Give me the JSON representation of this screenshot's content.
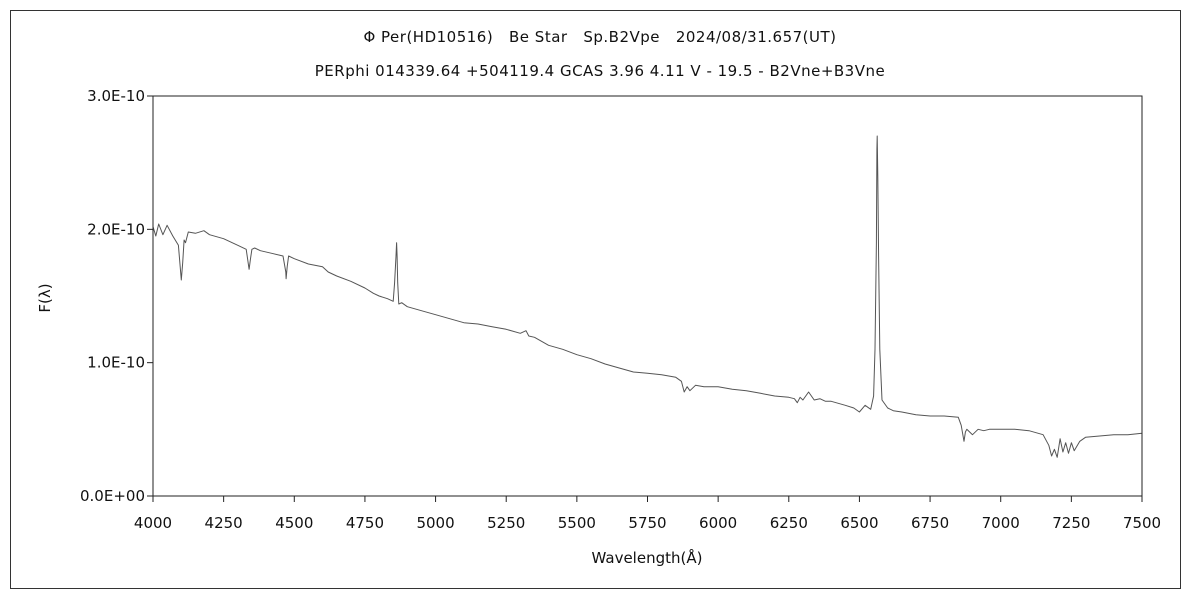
{
  "chart_data": {
    "type": "line",
    "title": "Φ Per(HD10516)   Be Star   Sp.B2Vpe   2024/08/31.657(UT)",
    "subtitle": "PERphi 014339.64 +504119.4 GCAS 3.96 4.11 V - 19.5 - B2Vne+B3Vne",
    "xlabel": "Wavelength(Å)",
    "ylabel": "F(λ)",
    "xlim": [
      4000,
      7500
    ],
    "ylim": [
      0,
      3e-10
    ],
    "x_ticks": [
      4000,
      4250,
      4500,
      4750,
      5000,
      5250,
      5500,
      5750,
      6000,
      6250,
      6500,
      6750,
      7000,
      7250,
      7500
    ],
    "x_tick_labels": [
      "4000",
      "4250",
      "4500",
      "4750",
      "5000",
      "5250",
      "5500",
      "5750",
      "6000",
      "6250",
      "6500",
      "6750",
      "7000",
      "7250",
      "7500"
    ],
    "y_ticks": [
      0,
      1e-10,
      2e-10,
      3e-10
    ],
    "y_tick_labels": [
      "0.0E+00",
      "1.0E-10",
      "2.0E-10",
      "3.0E-10"
    ],
    "grid": false,
    "line_color": "#555555",
    "series": [
      {
        "x": [
          4000,
          4010,
          4020,
          4035,
          4050,
          4070,
          4090,
          4100,
          4105,
          4110,
          4115,
          4125,
          4150,
          4180,
          4200,
          4250,
          4300,
          4330,
          4340,
          4345,
          4350,
          4360,
          4380,
          4420,
          4460,
          4470,
          4471,
          4475,
          4480,
          4500,
          4550,
          4600,
          4620,
          4650,
          4700,
          4750,
          4780,
          4800,
          4830,
          4850,
          4855,
          4860,
          4862,
          4864,
          4866,
          4870,
          4880,
          4900,
          4950,
          5000,
          5050,
          5100,
          5150,
          5200,
          5250,
          5300,
          5320,
          5330,
          5350,
          5400,
          5450,
          5500,
          5550,
          5600,
          5650,
          5700,
          5750,
          5800,
          5850,
          5870,
          5880,
          5890,
          5900,
          5920,
          5950,
          6000,
          6050,
          6100,
          6150,
          6200,
          6250,
          6270,
          6280,
          6290,
          6300,
          6320,
          6340,
          6360,
          6380,
          6400,
          6450,
          6480,
          6500,
          6520,
          6540,
          6550,
          6555,
          6560,
          6562,
          6563,
          6565,
          6568,
          6572,
          6580,
          6600,
          6620,
          6650,
          6700,
          6750,
          6800,
          6850,
          6860,
          6870,
          6875,
          6880,
          6900,
          6920,
          6940,
          6960,
          7000,
          7050,
          7100,
          7150,
          7170,
          7180,
          7190,
          7200,
          7210,
          7220,
          7230,
          7240,
          7250,
          7260,
          7280,
          7300,
          7350,
          7400,
          7450,
          7500
        ],
        "y": [
          2.02e-10,
          1.95e-10,
          2.04e-10,
          1.96e-10,
          2.03e-10,
          1.95e-10,
          1.88e-10,
          1.62e-10,
          1.75e-10,
          1.92e-10,
          1.9e-10,
          1.98e-10,
          1.97e-10,
          1.99e-10,
          1.96e-10,
          1.93e-10,
          1.88e-10,
          1.85e-10,
          1.7e-10,
          1.78e-10,
          1.85e-10,
          1.86e-10,
          1.84e-10,
          1.82e-10,
          1.8e-10,
          1.68e-10,
          1.63e-10,
          1.72e-10,
          1.8e-10,
          1.78e-10,
          1.74e-10,
          1.72e-10,
          1.68e-10,
          1.65e-10,
          1.61e-10,
          1.56e-10,
          1.52e-10,
          1.5e-10,
          1.48e-10,
          1.46e-10,
          1.6e-10,
          1.8e-10,
          1.9e-10,
          1.8e-10,
          1.6e-10,
          1.44e-10,
          1.45e-10,
          1.42e-10,
          1.39e-10,
          1.36e-10,
          1.33e-10,
          1.3e-10,
          1.29e-10,
          1.27e-10,
          1.25e-10,
          1.22e-10,
          1.24e-10,
          1.2e-10,
          1.19e-10,
          1.13e-10,
          1.1e-10,
          1.06e-10,
          1.03e-10,
          9.9e-11,
          9.6e-11,
          9.3e-11,
          9.2e-11,
          9.1e-11,
          8.9e-11,
          8.6e-11,
          7.8e-11,
          8.2e-11,
          7.9e-11,
          8.3e-11,
          8.2e-11,
          8.2e-11,
          8e-11,
          7.9e-11,
          7.7e-11,
          7.5e-11,
          7.4e-11,
          7.3e-11,
          7e-11,
          7.4e-11,
          7.2e-11,
          7.8e-11,
          7.2e-11,
          7.3e-11,
          7.1e-11,
          7.1e-11,
          6.8e-11,
          6.6e-11,
          6.3e-11,
          6.8e-11,
          6.5e-11,
          7.5e-11,
          1.1e-10,
          1.9e-10,
          2.6e-10,
          2.7e-10,
          2.4e-10,
          1.8e-10,
          1.1e-10,
          7.2e-11,
          6.6e-11,
          6.4e-11,
          6.3e-11,
          6.1e-11,
          6e-11,
          6e-11,
          5.9e-11,
          5.3e-11,
          4.1e-11,
          4.8e-11,
          5e-11,
          4.6e-11,
          5e-11,
          4.9e-11,
          5e-11,
          5e-11,
          5e-11,
          4.9e-11,
          4.6e-11,
          3.8e-11,
          3e-11,
          3.5e-11,
          2.9e-11,
          4.3e-11,
          3.3e-11,
          4e-11,
          3.2e-11,
          4e-11,
          3.4e-11,
          4.1e-11,
          4.4e-11,
          4.5e-11,
          4.6e-11,
          4.6e-11,
          4.7e-11
        ]
      }
    ]
  }
}
